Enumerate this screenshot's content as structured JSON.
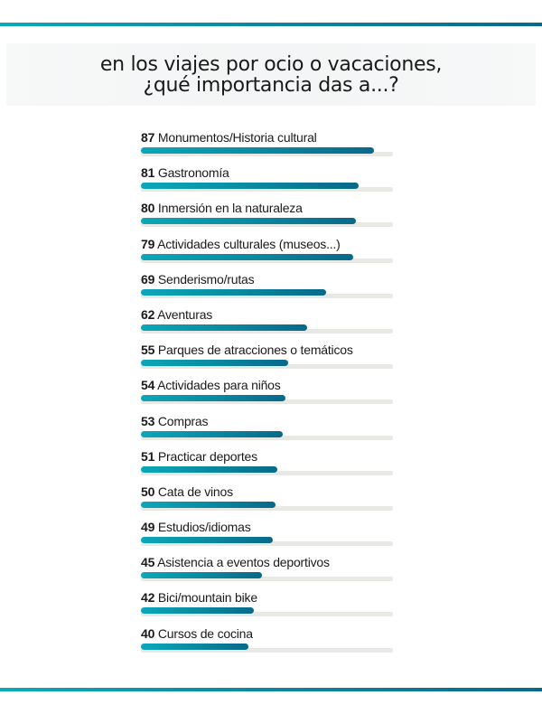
{
  "title": {
    "line1": "en los viajes por ocio o vacaciones,",
    "line2": "¿qué importancia das a...?"
  },
  "colors": {
    "accent_start": "#0aa9b9",
    "accent_end": "#086a8a",
    "track": "#e8e8e4",
    "title_bg": "#f5f6f7"
  },
  "rows": [
    {
      "value": "87",
      "label": "Monumentos/Historia cultural"
    },
    {
      "value": "81",
      "label": "Gastronomía"
    },
    {
      "value": "80",
      "label": "Inmersión en la naturaleza"
    },
    {
      "value": "79",
      "label": "Actividades  culturales (museos...)"
    },
    {
      "value": "69",
      "label": "Senderismo/rutas"
    },
    {
      "value": "62",
      "label": "Aventuras"
    },
    {
      "value": "55",
      "label": "Parques de atracciones o temáticos"
    },
    {
      "value": "54",
      "label": "Actividades para niños"
    },
    {
      "value": "53",
      "label": "Compras"
    },
    {
      "value": "51",
      "label": "Practicar deportes"
    },
    {
      "value": "50",
      "label": "Cata de vinos"
    },
    {
      "value": "49",
      "label": "Estudios/idiomas"
    },
    {
      "value": "45",
      "label": "Asistencia a eventos deportivos"
    },
    {
      "value": "42",
      "label": "Bici/mountain bike"
    },
    {
      "value": "40",
      "label": "Cursos de cocina"
    }
  ],
  "chart_data": {
    "type": "bar",
    "orientation": "horizontal",
    "title": "en los viajes por ocio o vacaciones, ¿qué importancia das a...?",
    "categories": [
      "Monumentos/Historia cultural",
      "Gastronomía",
      "Inmersión en la naturaleza",
      "Actividades  culturales (museos...)",
      "Senderismo/rutas",
      "Aventuras",
      "Parques de atracciones o temáticos",
      "Actividades para niños",
      "Compras",
      "Practicar deportes",
      "Cata de vinos",
      "Estudios/idiomas",
      "Asistencia a eventos deportivos",
      "Bici/mountain bike",
      "Cursos de cocina"
    ],
    "values": [
      87,
      81,
      80,
      79,
      69,
      62,
      55,
      54,
      53,
      51,
      50,
      49,
      45,
      42,
      40
    ],
    "xlabel": "",
    "ylabel": "",
    "xlim": [
      0,
      100
    ],
    "grid": false,
    "legend": null
  }
}
